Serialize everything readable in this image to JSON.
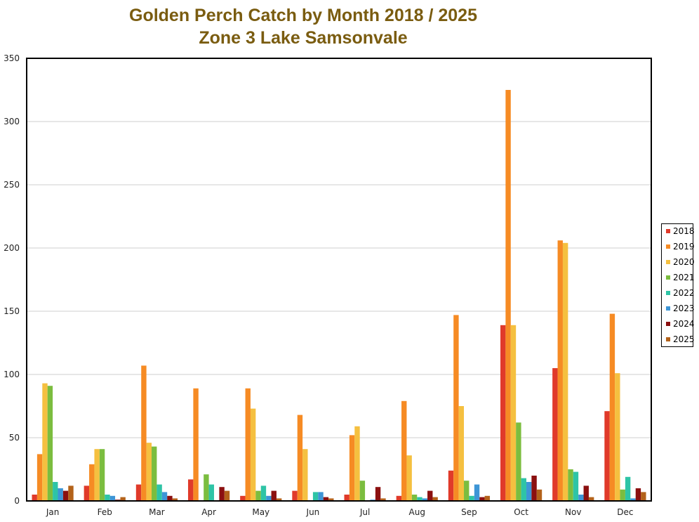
{
  "chart_data": {
    "type": "bar",
    "title": "Golden Perch Catch by Month 2018 / 2025",
    "subtitle": "Zone 3 Lake Samsonvale",
    "xlabel": "",
    "ylabel": "",
    "ylim": [
      0,
      350
    ],
    "yticks": [
      0,
      50,
      100,
      150,
      200,
      250,
      300,
      350
    ],
    "grid": true,
    "legend_position": "right",
    "categories": [
      "Jan",
      "Feb",
      "Mar",
      "Apr",
      "May",
      "Jun",
      "Jul",
      "Aug",
      "Sep",
      "Oct",
      "Nov",
      "Dec"
    ],
    "series": [
      {
        "name": "2018",
        "color": "#e03a2a",
        "values": [
          5,
          12,
          13,
          17,
          4,
          8,
          5,
          4,
          24,
          139,
          105,
          71
        ]
      },
      {
        "name": "2019",
        "color": "#f68b24",
        "values": [
          37,
          29,
          107,
          89,
          89,
          68,
          52,
          79,
          147,
          325,
          206,
          148
        ]
      },
      {
        "name": "2020",
        "color": "#f5c040",
        "values": [
          93,
          41,
          46,
          0,
          73,
          41,
          59,
          36,
          75,
          139,
          204,
          101
        ]
      },
      {
        "name": "2021",
        "color": "#7bbd3f",
        "values": [
          91,
          41,
          43,
          21,
          8,
          0,
          16,
          5,
          16,
          62,
          25,
          9
        ]
      },
      {
        "name": "2022",
        "color": "#2ec4a6",
        "values": [
          15,
          5,
          13,
          13,
          12,
          7,
          0,
          3,
          4,
          18,
          23,
          19
        ]
      },
      {
        "name": "2023",
        "color": "#3d95d6",
        "values": [
          10,
          4,
          7,
          0,
          4,
          7,
          1,
          2,
          13,
          15,
          5,
          2
        ]
      },
      {
        "name": "2024",
        "color": "#8b1010",
        "values": [
          8,
          1,
          4,
          11,
          8,
          3,
          11,
          8,
          3,
          20,
          12,
          10
        ]
      },
      {
        "name": "2025",
        "color": "#b3621a",
        "values": [
          12,
          3,
          2,
          8,
          2,
          2,
          2,
          3,
          4,
          9,
          3,
          7
        ]
      }
    ]
  }
}
